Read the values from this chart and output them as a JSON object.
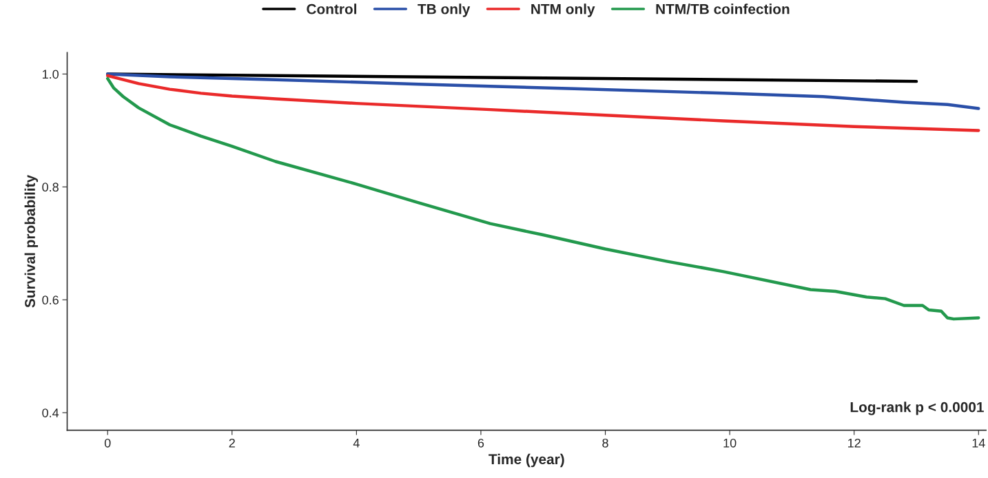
{
  "chart_data": {
    "type": "line",
    "xlabel": "Time (year)",
    "ylabel": "Survival probability",
    "xlim": [
      -0.65,
      14.12
    ],
    "ylim": [
      0.369,
      1.038
    ],
    "xticks": [
      0,
      2,
      4,
      6,
      8,
      10,
      12,
      14
    ],
    "yticks": [
      0.4,
      0.6,
      0.8,
      {
        "value": 1,
        "label": "1.0"
      }
    ],
    "grid": false,
    "legend": "top",
    "line_style": "solid",
    "marker": "none",
    "annotations": [
      "Log-rank p < 0.0001"
    ],
    "series": [
      {
        "name": "Control",
        "color": "#000000",
        "x": [
          0,
          13
        ],
        "values": [
          1.0,
          0.987
        ]
      },
      {
        "name": "TB only",
        "color": "#2a4fa8",
        "x": [
          0,
          1,
          2.7,
          5,
          7.5,
          9.9,
          11.5,
          12.8,
          13.5,
          14
        ],
        "values": [
          1.0,
          0.995,
          0.99,
          0.982,
          0.974,
          0.966,
          0.96,
          0.95,
          0.946,
          0.939
        ]
      },
      {
        "name": "NTM only",
        "color": "#ea2a2a",
        "x": [
          0,
          0.25,
          0.5,
          1,
          1.5,
          2,
          2.7,
          4,
          6.15,
          8,
          9.9,
          12,
          14
        ],
        "values": [
          0.997,
          0.99,
          0.983,
          0.973,
          0.966,
          0.961,
          0.956,
          0.948,
          0.937,
          0.927,
          0.917,
          0.907,
          0.9
        ]
      },
      {
        "name": "NTM/TB coinfection",
        "color": "#23994d",
        "x": [
          0,
          0.1,
          0.25,
          0.5,
          1,
          1.5,
          2,
          2.7,
          4,
          5,
          6.15,
          7,
          8,
          9,
          9.9,
          11.3,
          11.7,
          12.2,
          12.5,
          12.8,
          13.1,
          13.2,
          13.4,
          13.5,
          13.6,
          14.0
        ],
        "values": [
          0.992,
          0.975,
          0.96,
          0.94,
          0.91,
          0.89,
          0.872,
          0.845,
          0.805,
          0.772,
          0.735,
          0.715,
          0.69,
          0.668,
          0.65,
          0.618,
          0.615,
          0.605,
          0.602,
          0.59,
          0.59,
          0.582,
          0.58,
          0.568,
          0.566,
          0.568
        ]
      }
    ]
  }
}
